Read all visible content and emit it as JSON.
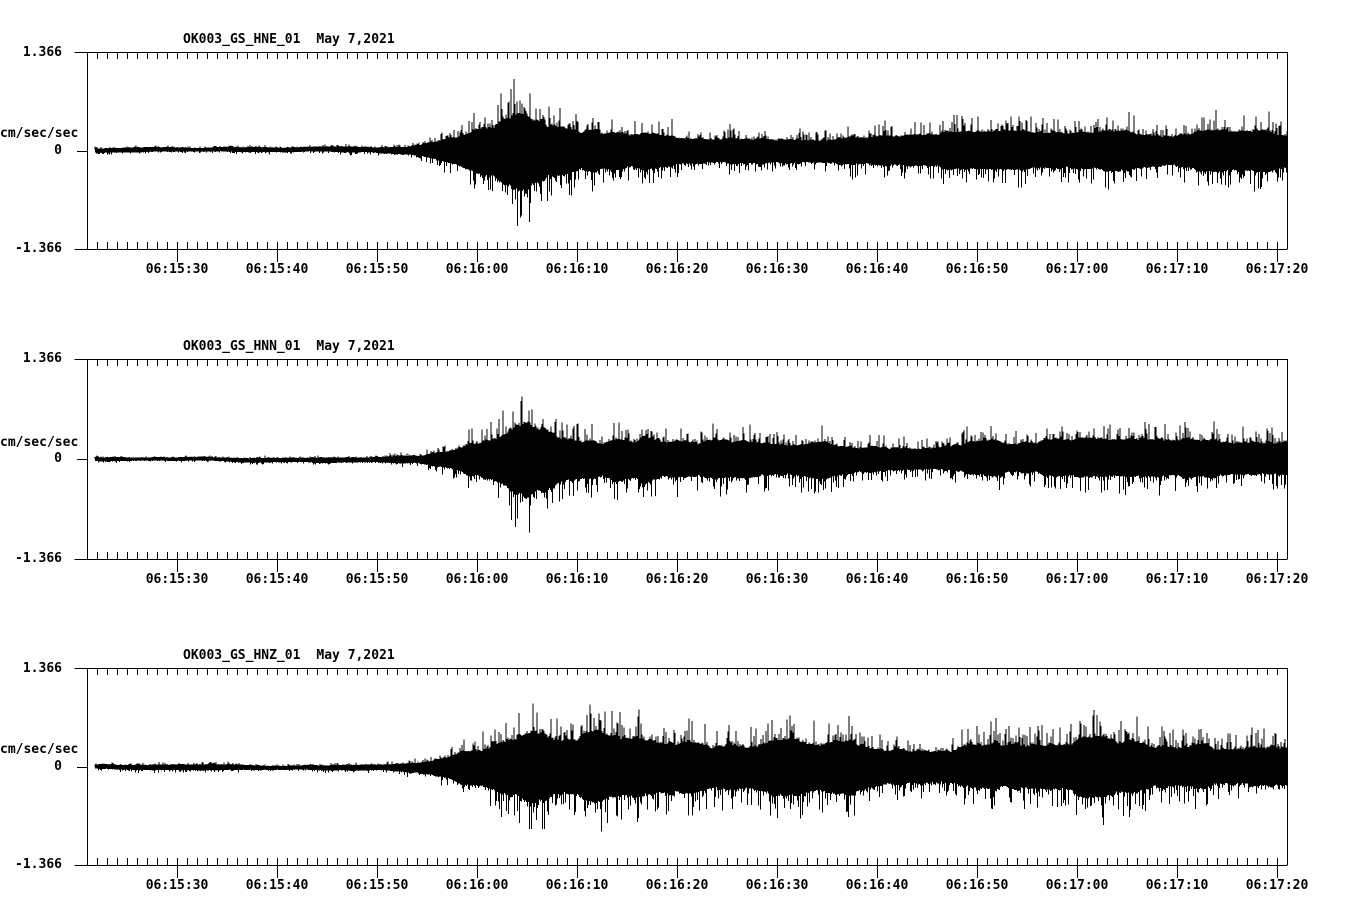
{
  "page": {
    "background": "#ffffff",
    "foreground": "#000000"
  },
  "chart_data": [
    {
      "type": "line",
      "title_id": "OK003_GS_HNE_01",
      "title_date": "May 7,2021",
      "ylabel": "cm/sec/sec",
      "ylim": [
        -1.366,
        1.366
      ],
      "ytick_labels": [
        "1.366",
        "0",
        "-1.366"
      ],
      "xrange_sec": [
        0,
        120
      ],
      "minor_tick_interval_sec": 1,
      "major_tick_interval_sec": 10,
      "xticks": [
        {
          "label": "06:15:30",
          "offset_sec": 9
        },
        {
          "label": "06:15:40",
          "offset_sec": 19
        },
        {
          "label": "06:15:50",
          "offset_sec": 29
        },
        {
          "label": "06:16:00",
          "offset_sec": 39
        },
        {
          "label": "06:16:10",
          "offset_sec": 49
        },
        {
          "label": "06:16:20",
          "offset_sec": 59
        },
        {
          "label": "06:16:30",
          "offset_sec": 69
        },
        {
          "label": "06:16:40",
          "offset_sec": 79
        },
        {
          "label": "06:16:50",
          "offset_sec": 89
        },
        {
          "label": "06:17:00",
          "offset_sec": 99
        },
        {
          "label": "06:17:10",
          "offset_sec": 109
        },
        {
          "label": "06:17:20",
          "offset_sec": 119
        }
      ],
      "envelope_cm_s2": [
        [
          0,
          0.06
        ],
        [
          20,
          0.06
        ],
        [
          27,
          0.08
        ],
        [
          31,
          0.1
        ],
        [
          33,
          0.13
        ],
        [
          36,
          0.26
        ],
        [
          38,
          0.4
        ],
        [
          40,
          0.56
        ],
        [
          42,
          0.78
        ],
        [
          43.5,
          0.86
        ],
        [
          45,
          0.8
        ],
        [
          47,
          0.66
        ],
        [
          49,
          0.58
        ],
        [
          51,
          0.68
        ],
        [
          53,
          0.52
        ],
        [
          55,
          0.48
        ],
        [
          57,
          0.62
        ],
        [
          59,
          0.52
        ],
        [
          62,
          0.44
        ],
        [
          66,
          0.46
        ],
        [
          70,
          0.42
        ],
        [
          75,
          0.44
        ],
        [
          80,
          0.4
        ],
        [
          85,
          0.42
        ],
        [
          90,
          0.41
        ],
        [
          95,
          0.44
        ],
        [
          100,
          0.43
        ],
        [
          105,
          0.45
        ],
        [
          110,
          0.44
        ],
        [
          115,
          0.46
        ],
        [
          120,
          0.47
        ]
      ]
    },
    {
      "type": "line",
      "title_id": "OK003_GS_HNN_01",
      "title_date": "May 7,2021",
      "ylabel": "cm/sec/sec",
      "ylim": [
        -1.366,
        1.366
      ],
      "ytick_labels": [
        "1.366",
        "0",
        "-1.366"
      ],
      "xrange_sec": [
        0,
        120
      ],
      "minor_tick_interval_sec": 1,
      "major_tick_interval_sec": 10,
      "xticks": [
        {
          "label": "06:15:30",
          "offset_sec": 9
        },
        {
          "label": "06:15:40",
          "offset_sec": 19
        },
        {
          "label": "06:15:50",
          "offset_sec": 29
        },
        {
          "label": "06:16:00",
          "offset_sec": 39
        },
        {
          "label": "06:16:10",
          "offset_sec": 49
        },
        {
          "label": "06:16:20",
          "offset_sec": 59
        },
        {
          "label": "06:16:30",
          "offset_sec": 69
        },
        {
          "label": "06:16:40",
          "offset_sec": 79
        },
        {
          "label": "06:16:50",
          "offset_sec": 89
        },
        {
          "label": "06:17:00",
          "offset_sec": 99
        },
        {
          "label": "06:17:10",
          "offset_sec": 109
        },
        {
          "label": "06:17:20",
          "offset_sec": 119
        }
      ],
      "envelope_cm_s2": [
        [
          0,
          0.05
        ],
        [
          20,
          0.06
        ],
        [
          27,
          0.08
        ],
        [
          31,
          0.1
        ],
        [
          33,
          0.12
        ],
        [
          36,
          0.23
        ],
        [
          38,
          0.36
        ],
        [
          40,
          0.52
        ],
        [
          42,
          0.74
        ],
        [
          44,
          0.96
        ],
        [
          45.5,
          0.86
        ],
        [
          47,
          0.7
        ],
        [
          49,
          0.6
        ],
        [
          51,
          0.55
        ],
        [
          53,
          0.6
        ],
        [
          55,
          0.68
        ],
        [
          56.5,
          0.76
        ],
        [
          58,
          0.6
        ],
        [
          60,
          0.52
        ],
        [
          63,
          0.47
        ],
        [
          66,
          0.44
        ],
        [
          70,
          0.41
        ],
        [
          75,
          0.43
        ],
        [
          80,
          0.39
        ],
        [
          85,
          0.41
        ],
        [
          90,
          0.43
        ],
        [
          95,
          0.4
        ],
        [
          100,
          0.43
        ],
        [
          105,
          0.41
        ],
        [
          110,
          0.44
        ],
        [
          115,
          0.42
        ],
        [
          120,
          0.45
        ]
      ]
    },
    {
      "type": "line",
      "title_id": "OK003_GS_HNZ_01",
      "title_date": "May 7,2021",
      "ylabel": "cm/sec/sec",
      "ylim": [
        -1.366,
        1.366
      ],
      "ytick_labels": [
        "1.366",
        "0",
        "-1.366"
      ],
      "xrange_sec": [
        0,
        120
      ],
      "minor_tick_interval_sec": 1,
      "major_tick_interval_sec": 10,
      "xticks": [
        {
          "label": "06:15:30",
          "offset_sec": 9
        },
        {
          "label": "06:15:40",
          "offset_sec": 19
        },
        {
          "label": "06:15:50",
          "offset_sec": 29
        },
        {
          "label": "06:16:00",
          "offset_sec": 39
        },
        {
          "label": "06:16:10",
          "offset_sec": 49
        },
        {
          "label": "06:16:20",
          "offset_sec": 59
        },
        {
          "label": "06:16:30",
          "offset_sec": 69
        },
        {
          "label": "06:16:40",
          "offset_sec": 79
        },
        {
          "label": "06:16:50",
          "offset_sec": 89
        },
        {
          "label": "06:17:00",
          "offset_sec": 99
        },
        {
          "label": "06:17:10",
          "offset_sec": 109
        },
        {
          "label": "06:17:20",
          "offset_sec": 119
        }
      ],
      "envelope_cm_s2": [
        [
          0,
          0.06
        ],
        [
          20,
          0.07
        ],
        [
          27,
          0.09
        ],
        [
          31,
          0.11
        ],
        [
          33,
          0.14
        ],
        [
          36,
          0.29
        ],
        [
          38,
          0.46
        ],
        [
          40,
          0.64
        ],
        [
          42,
          0.92
        ],
        [
          44,
          1.3
        ],
        [
          45.5,
          1.08
        ],
        [
          47,
          0.84
        ],
        [
          49,
          0.72
        ],
        [
          51,
          0.8
        ],
        [
          53,
          0.68
        ],
        [
          55,
          0.73
        ],
        [
          57,
          0.65
        ],
        [
          60,
          0.61
        ],
        [
          63,
          0.66
        ],
        [
          66,
          0.58
        ],
        [
          70,
          0.63
        ],
        [
          75,
          0.58
        ],
        [
          80,
          0.62
        ],
        [
          85,
          0.59
        ],
        [
          90,
          0.66
        ],
        [
          95,
          0.6
        ],
        [
          100,
          0.68
        ],
        [
          105,
          0.62
        ],
        [
          110,
          0.7
        ],
        [
          115,
          0.66
        ],
        [
          120,
          0.73
        ]
      ]
    }
  ]
}
